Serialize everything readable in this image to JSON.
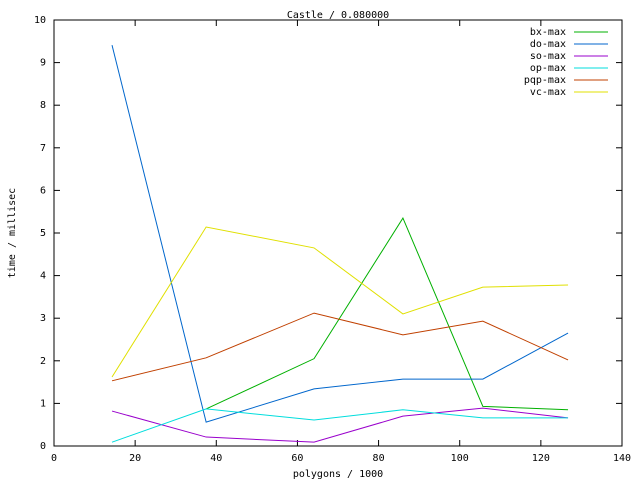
{
  "chart_data": {
    "type": "line",
    "title": "Castle / 0.080000",
    "x_label": "polygons / 1000",
    "y_label": "time / millisec",
    "x": [
      14.3,
      37.5,
      64.1,
      86.0,
      105.7,
      126.7
    ],
    "series": [
      {
        "name": "bx-max",
        "color": "#00b000",
        "values": [
          null,
          0.87,
          2.05,
          5.35,
          0.93,
          0.85
        ]
      },
      {
        "name": "do-max",
        "color": "#0066cc",
        "values": [
          9.41,
          0.56,
          1.34,
          1.57,
          1.57,
          2.65
        ]
      },
      {
        "name": "so-max",
        "color": "#9900cc",
        "values": [
          0.82,
          0.21,
          0.09,
          0.7,
          0.89,
          0.66
        ]
      },
      {
        "name": "op-max",
        "color": "#00dddd",
        "values": [
          0.09,
          0.87,
          0.61,
          0.85,
          0.66,
          0.66
        ]
      },
      {
        "name": "pqp-max",
        "color": "#c04000",
        "values": [
          1.53,
          2.07,
          3.12,
          2.61,
          2.93,
          2.02
        ]
      },
      {
        "name": "vc-max",
        "color": "#e0e000",
        "values": [
          1.62,
          5.14,
          4.65,
          3.1,
          3.73,
          3.78
        ]
      }
    ],
    "xlim": [
      0,
      140
    ],
    "xticks": [
      0,
      20,
      40,
      60,
      80,
      100,
      120,
      140
    ],
    "ylim": [
      0,
      10
    ],
    "yticks": [
      0,
      1,
      2,
      3,
      4,
      5,
      6,
      7,
      8,
      9,
      10
    ],
    "grid": false,
    "legend_position": "top-right"
  }
}
